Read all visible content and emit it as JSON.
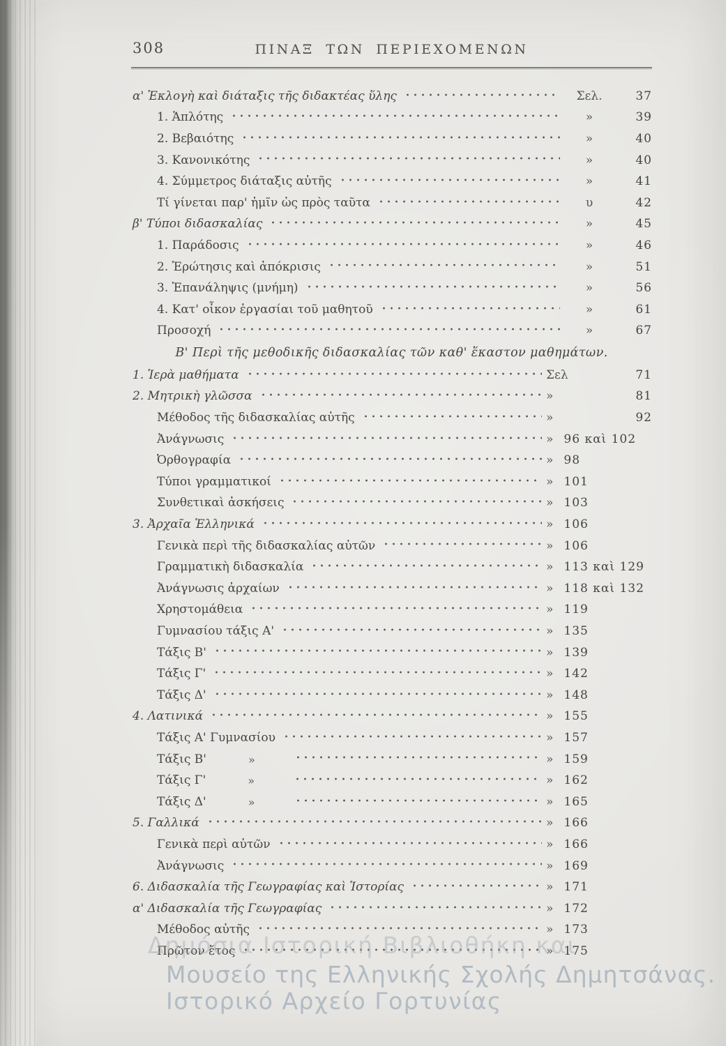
{
  "page": {
    "folio": "308",
    "header_title": "ΠΙΝΑΞ ΤΩΝ ΠΕΡΙΕΧΟΜΕΝΩΝ"
  },
  "colors": {
    "paper": "#e7e6e3",
    "ink": "#47453f",
    "rule": "#838279",
    "binding_edge": "#6e6e6c",
    "watermark": "#a1afba"
  },
  "toc": {
    "section_a": {
      "rows": [
        {
          "label": "α' Ἐκλογὴ καὶ διάταξις τῆς διδακτέας ὕλης",
          "marker": "Σελ.",
          "page": "37",
          "indent": 0,
          "italic": true
        },
        {
          "label": "1. Ἁπλότης",
          "marker": "»",
          "page": "39",
          "indent": 1
        },
        {
          "label": "2. Βεβαιότης",
          "marker": "»",
          "page": "40",
          "indent": 1
        },
        {
          "label": "3. Κανονικότης",
          "marker": "»",
          "page": "40",
          "indent": 1
        },
        {
          "label": "4. Σύμμετρος διάταξις αὐτῆς",
          "marker": "»",
          "page": "41",
          "indent": 1
        },
        {
          "label": "Τί γίνεται παρ' ἡμῖν ὡς πρὸς ταῦτα",
          "marker": "υ",
          "page": "42",
          "indent": 1
        },
        {
          "label": "β' Τύποι διδασκαλίας",
          "marker": "»",
          "page": "45",
          "indent": 0,
          "italic": true
        },
        {
          "label": "1. Παράδοσις",
          "marker": "»",
          "page": "46",
          "indent": 1
        },
        {
          "label": "2. Ἐρώτησις καὶ ἀπόκρισις",
          "marker": "»",
          "page": "51",
          "indent": 1
        },
        {
          "label": "3. Ἐπανάληψις (μνήμη)",
          "marker": "»",
          "page": "56",
          "indent": 1
        },
        {
          "label": "4. Κατ' οἶκον ἐργασίαι τοῦ μαθητοῦ",
          "marker": "»",
          "page": "61",
          "indent": 1
        },
        {
          "label": "Προσοχή",
          "marker": "»",
          "page": "67",
          "indent": 1
        }
      ]
    },
    "section_b_heading": "Β' Περὶ τῆς μεθοδικῆς διδασκαλίας τῶν καθ' ἕκαστον μαθημάτων.",
    "section_b": {
      "rows": [
        {
          "label": "1. Ἱερὰ μαθήματα",
          "marker": "Σελ",
          "page": "71",
          "indent": 0,
          "italic": true,
          "layout": "spread"
        },
        {
          "label": "2. Μητρικὴ γλῶσσα",
          "marker": "»",
          "page": "81",
          "indent": 0,
          "italic": true,
          "layout": "spread"
        },
        {
          "label": "Μέθοδος τῆς διδασκαλίας αὐτῆς",
          "marker": "»",
          "page": "92",
          "indent": 1,
          "layout": "spread"
        },
        {
          "label": "Ἀνάγνωσις",
          "marker": "»",
          "page": "96 καὶ 102",
          "indent": 1,
          "layout": "inline"
        },
        {
          "label": "Ὀρθογραφία",
          "marker": "»",
          "page": "98",
          "indent": 1,
          "layout": "inline"
        },
        {
          "label": "Τύποι γραμματικοί",
          "marker": "»",
          "page": "101",
          "indent": 1,
          "layout": "inline"
        },
        {
          "label": "Συνθετικαὶ ἀσκήσεις",
          "marker": "»",
          "page": "103",
          "indent": 1,
          "layout": "inline"
        },
        {
          "label": "3. Ἀρχαῖα Ἑλληνικά",
          "marker": "»",
          "page": "106",
          "indent": 0,
          "italic": true,
          "layout": "inline"
        },
        {
          "label": "Γενικὰ περὶ τῆς διδασκαλίας αὐτῶν",
          "marker": "»",
          "page": "106",
          "indent": 1,
          "layout": "inline"
        },
        {
          "label": "Γραμματικὴ διδασκαλία",
          "marker": "»",
          "page": "113 καὶ 129",
          "indent": 1,
          "layout": "inline"
        },
        {
          "label": "Ἀνάγνωσις ἀρχαίων",
          "marker": "»",
          "page": "118 καὶ 132",
          "indent": 1,
          "layout": "inline"
        },
        {
          "label": "Χρηστομάθεια",
          "marker": "»",
          "page": "119",
          "indent": 1,
          "layout": "inline"
        },
        {
          "label": "Γυμνασίου τάξις Α'",
          "marker": "»",
          "page": "135",
          "indent": 1,
          "layout": "inline"
        },
        {
          "label": "Τάξις Β'",
          "marker": "»",
          "page": "139",
          "indent": 1,
          "layout": "inline"
        },
        {
          "label": "Τάξις Γ'",
          "marker": "»",
          "page": "142",
          "indent": 1,
          "layout": "inline"
        },
        {
          "label": "Τάξις Δ'",
          "marker": "»",
          "page": "148",
          "indent": 1,
          "layout": "inline"
        },
        {
          "label": "4. Λατινικά",
          "marker": "»",
          "page": "155",
          "indent": 0,
          "italic": true,
          "layout": "inline"
        },
        {
          "label": "Τάξις Α' Γυμνασίου",
          "marker": "»",
          "page": "157",
          "indent": 1,
          "layout": "inline"
        },
        {
          "label": "Τάξις Β'",
          "ditto": "»",
          "marker": "»",
          "page": "159",
          "indent": 1,
          "layout": "inline"
        },
        {
          "label": "Τάξις Γ'",
          "ditto": "»",
          "marker": "»",
          "page": "162",
          "indent": 1,
          "layout": "inline"
        },
        {
          "label": "Τάξις Δ'",
          "ditto": "»",
          "marker": "»",
          "page": "165",
          "indent": 1,
          "layout": "inline"
        },
        {
          "label": "5. Γαλλικά",
          "marker": "»",
          "page": "166",
          "indent": 0,
          "italic": true,
          "layout": "inline"
        },
        {
          "label": "Γενικὰ περὶ αὐτῶν",
          "marker": "»",
          "page": "166",
          "indent": 1,
          "layout": "inline"
        },
        {
          "label": "Ἀνάγνωσις",
          "marker": "»",
          "page": "169",
          "indent": 1,
          "layout": "inline"
        },
        {
          "label": "6. Διδασκαλία τῆς Γεωγραφίας καὶ Ἱστορίας",
          "marker": "»",
          "page": "171",
          "indent": 0,
          "italic": true,
          "layout": "inline"
        },
        {
          "label": "α' Διδασκαλία τῆς Γεωγραφίας",
          "marker": "»",
          "page": "172",
          "indent": 0,
          "italic": true,
          "layout": "inline"
        },
        {
          "label": "Μέθοδος αὐτῆς",
          "marker": "»",
          "page": "173",
          "indent": 1,
          "layout": "inline"
        },
        {
          "label": "Πρῶτον ἔτος",
          "marker": "»",
          "page": "175",
          "indent": 1,
          "layout": "inline"
        }
      ]
    }
  },
  "watermark": {
    "line1": "Δημόσια Ιστορική Βιβλιοθήκη και",
    "line2": "Μουσείο της Ελληνικής Σχολής Δημητσάνας.",
    "line3": "Ιστορικό Αρχείο Γορτυνίας"
  }
}
